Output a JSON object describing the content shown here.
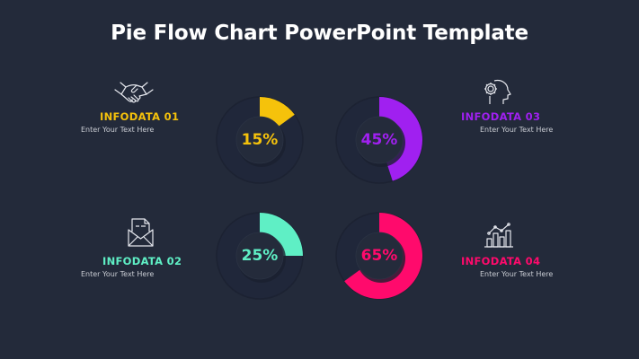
{
  "title": "Pie Flow Chart PowerPoint Template",
  "colors": {
    "background": "#232a3a",
    "yellow": "#f5c20b",
    "purple": "#a020f0",
    "teal": "#5fefc5",
    "pink": "#ff0a6c"
  },
  "items": [
    {
      "label": "INFODATA 01",
      "text": "Enter Your Text Here",
      "icon": "handshake-icon",
      "percent": "15%",
      "color": "#f5c20b"
    },
    {
      "label": "INFODATA 02",
      "text": "Enter Your Text Here",
      "icon": "mail-document-icon",
      "percent": "25%",
      "color": "#5fefc5"
    },
    {
      "label": "INFODATA 03",
      "text": "Enter Your Text Here",
      "icon": "head-gear-icon",
      "percent": "45%",
      "color": "#a020f0"
    },
    {
      "label": "INFODATA 04",
      "text": "Enter Your Text Here",
      "icon": "bar-chart-growth-icon",
      "percent": "65%",
      "color": "#ff0a6c"
    }
  ],
  "chart_data": {
    "type": "pie",
    "title": "Pie Flow Chart PowerPoint Template",
    "categories": [
      "INFODATA 01",
      "INFODATA 02",
      "INFODATA 03",
      "INFODATA 04"
    ],
    "values": [
      15,
      25,
      45,
      65
    ],
    "unit": "%",
    "series_colors": [
      "#f5c20b",
      "#5fefc5",
      "#a020f0",
      "#ff0a6c"
    ],
    "layout": "four separate donut gauges in 2x2 grid, each filled clockwise from 12 o'clock",
    "legend": "none (labels beside each donut)"
  }
}
